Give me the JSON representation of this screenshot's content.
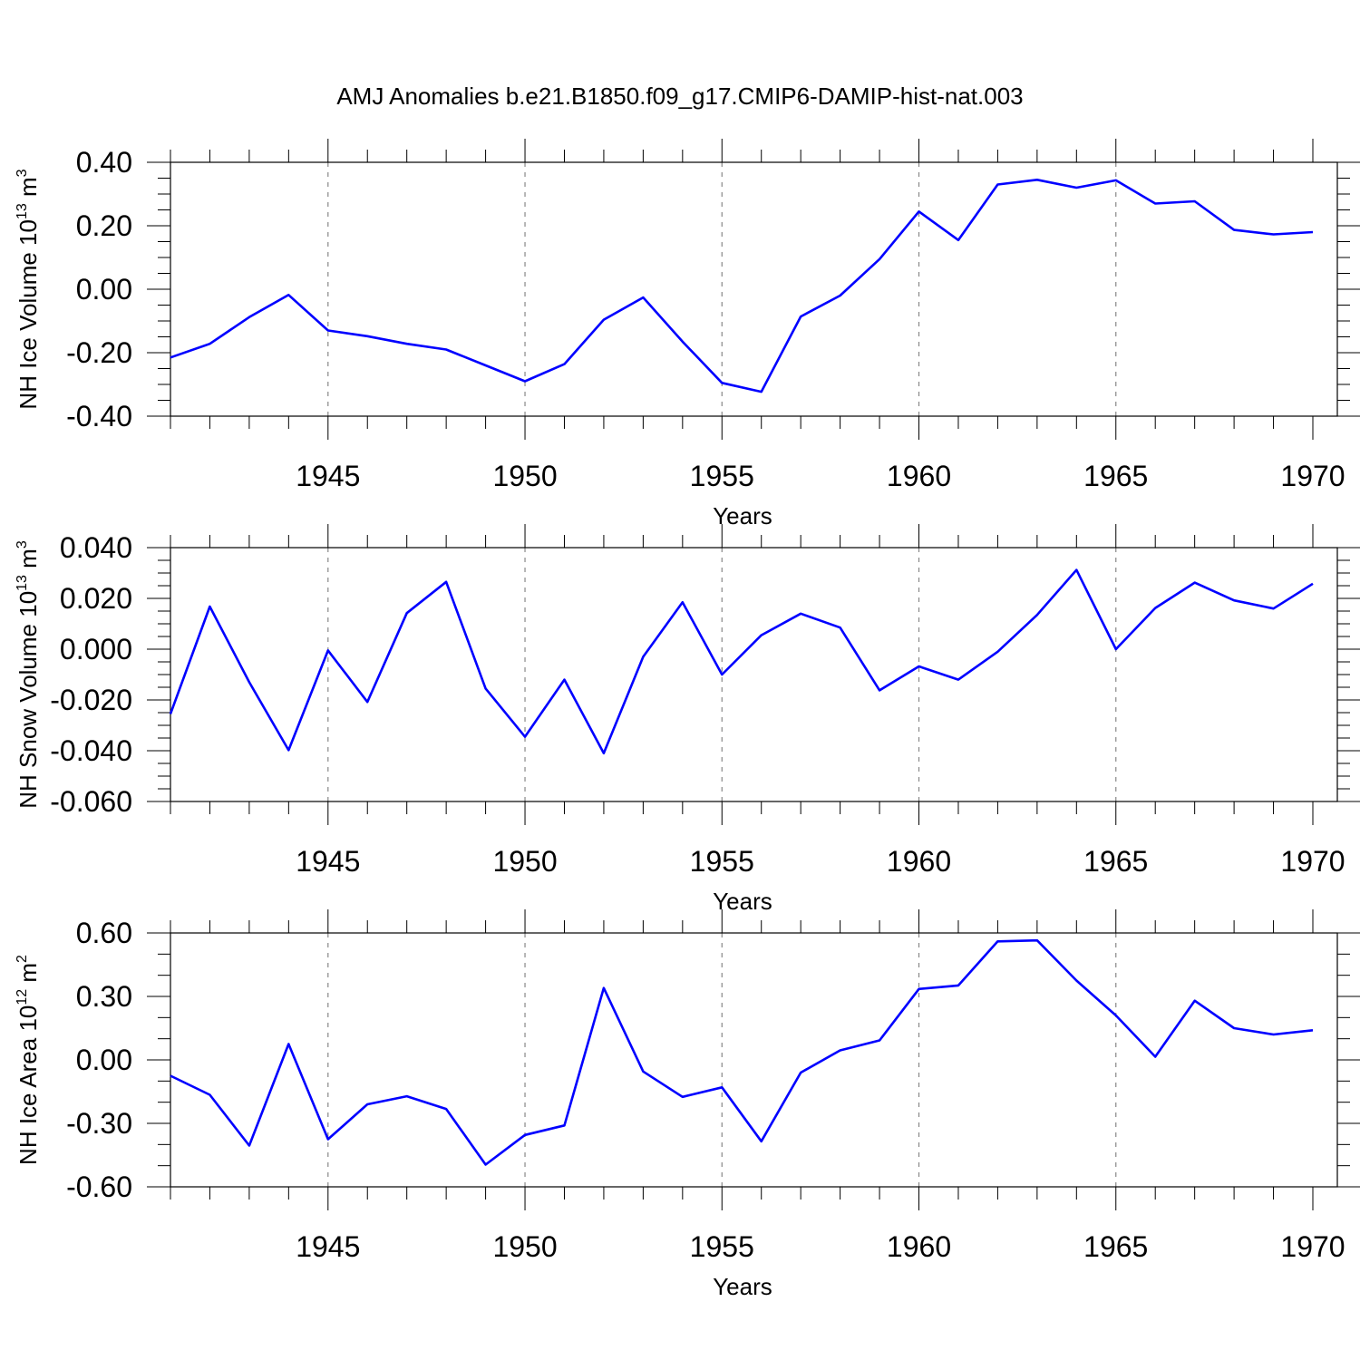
{
  "title": "AMJ Anomalies b.e21.B1850.f09_g17.CMIP6-DAMIP-hist-nat.003",
  "line_color": "#0000ff",
  "chart_data": [
    {
      "type": "line",
      "ylabel": {
        "text": "NH Ice Volume 10",
        "sup": "13",
        "unit": " m",
        "unit_sup": "3"
      },
      "xlabel": "Years",
      "x": [
        1941,
        1942,
        1943,
        1944,
        1945,
        1946,
        1947,
        1948,
        1949,
        1950,
        1951,
        1952,
        1953,
        1954,
        1955,
        1956,
        1957,
        1958,
        1959,
        1960,
        1961,
        1962,
        1963,
        1964,
        1965,
        1966,
        1967,
        1968,
        1969,
        1970
      ],
      "values": [
        -0.215,
        -0.172,
        -0.088,
        -0.018,
        -0.13,
        -0.148,
        -0.172,
        -0.19,
        -0.24,
        -0.29,
        -0.236,
        -0.096,
        -0.026,
        -0.165,
        -0.295,
        -0.323,
        -0.086,
        -0.02,
        0.095,
        0.245,
        0.155,
        0.33,
        0.345,
        0.32,
        0.343,
        0.27,
        0.277,
        0.187,
        0.173,
        0.18
      ],
      "xlim": [
        1941,
        1970
      ],
      "ylim": [
        -0.4,
        0.4
      ],
      "yticks": [
        -0.4,
        -0.2,
        0.0,
        0.2,
        0.4
      ],
      "ytick_labels": [
        "-0.40",
        "-0.20",
        "0.00",
        "0.20",
        "0.40"
      ],
      "yminor_step": 0.05,
      "xticks": [
        1945,
        1950,
        1955,
        1960,
        1965,
        1970
      ],
      "xtick_labels": [
        "1945",
        "1950",
        "1955",
        "1960",
        "1965",
        "1970"
      ],
      "grid": "vertical-dashed"
    },
    {
      "type": "line",
      "ylabel": {
        "text": "NH Snow Volume 10",
        "sup": "13",
        "unit": " m",
        "unit_sup": "3"
      },
      "xlabel": "Years",
      "x": [
        1941,
        1942,
        1943,
        1944,
        1945,
        1946,
        1947,
        1948,
        1949,
        1950,
        1951,
        1952,
        1953,
        1954,
        1955,
        1956,
        1957,
        1958,
        1959,
        1960,
        1961,
        1962,
        1963,
        1964,
        1965,
        1966,
        1967,
        1968,
        1969,
        1970
      ],
      "values": [
        -0.0255,
        0.0168,
        -0.013,
        -0.0398,
        -0.0005,
        -0.0208,
        0.0142,
        0.0265,
        -0.0155,
        -0.0345,
        -0.012,
        -0.041,
        -0.003,
        0.0185,
        -0.01,
        0.0055,
        0.014,
        0.0085,
        -0.0162,
        -0.0068,
        -0.012,
        -0.001,
        0.0135,
        0.0312,
        0.0,
        0.0162,
        0.0262,
        0.0192,
        0.016,
        0.0258
      ],
      "xlim": [
        1941,
        1970
      ],
      "ylim": [
        -0.06,
        0.04
      ],
      "yticks": [
        -0.06,
        -0.04,
        -0.02,
        0.0,
        0.02,
        0.04
      ],
      "ytick_labels": [
        "-0.060",
        "-0.040",
        "-0.020",
        "0.000",
        "0.020",
        "0.040"
      ],
      "yminor_step": 0.005,
      "xticks": [
        1945,
        1950,
        1955,
        1960,
        1965,
        1970
      ],
      "xtick_labels": [
        "1945",
        "1950",
        "1955",
        "1960",
        "1965",
        "1970"
      ],
      "grid": "vertical-dashed"
    },
    {
      "type": "line",
      "ylabel": {
        "text": "NH Ice Area 10",
        "sup": "12",
        "unit": " m",
        "unit_sup": "2"
      },
      "xlabel": "Years",
      "x": [
        1941,
        1942,
        1943,
        1944,
        1945,
        1946,
        1947,
        1948,
        1949,
        1950,
        1951,
        1952,
        1953,
        1954,
        1955,
        1956,
        1957,
        1958,
        1959,
        1960,
        1961,
        1962,
        1963,
        1964,
        1965,
        1966,
        1967,
        1968,
        1969,
        1970
      ],
      "values": [
        -0.075,
        -0.165,
        -0.405,
        0.075,
        -0.375,
        -0.21,
        -0.172,
        -0.232,
        -0.495,
        -0.355,
        -0.31,
        0.34,
        -0.055,
        -0.175,
        -0.13,
        -0.385,
        -0.06,
        0.045,
        0.092,
        0.335,
        0.352,
        0.56,
        0.565,
        0.375,
        0.21,
        0.015,
        0.28,
        0.15,
        0.12,
        0.14
      ],
      "xlim": [
        1941,
        1970
      ],
      "ylim": [
        -0.6,
        0.6
      ],
      "yticks": [
        -0.6,
        -0.3,
        0.0,
        0.3,
        0.6
      ],
      "ytick_labels": [
        "-0.60",
        "-0.30",
        "0.00",
        "0.30",
        "0.60"
      ],
      "yminor_step": 0.1,
      "xticks": [
        1945,
        1950,
        1955,
        1960,
        1965,
        1970
      ],
      "xtick_labels": [
        "1945",
        "1950",
        "1955",
        "1960",
        "1965",
        "1970"
      ],
      "grid": "vertical-dashed"
    }
  ]
}
